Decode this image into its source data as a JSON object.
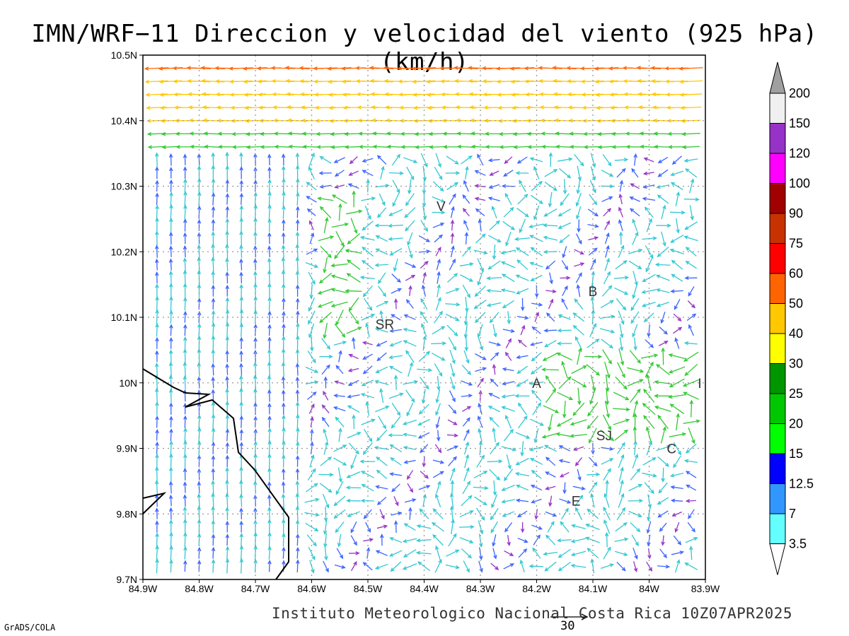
{
  "title": "IMN/WRF−11 Direccion y velocidad del viento (925 hPa)(km/h)",
  "footer": "Instituto Meteorologico Nacional Costa Rica 10Z07APR2025",
  "credit": "GrADS/COLA",
  "reference_vector": {
    "value": "30"
  },
  "map": {
    "lat_range": [
      9.7,
      10.5
    ],
    "lon_range": [
      -84.9,
      -83.9
    ],
    "y_ticks": [
      "10.5N",
      "10.4N",
      "10.3N",
      "10.2N",
      "10.1N",
      "10N",
      "9.9N",
      "9.8N",
      "9.7N"
    ],
    "x_ticks": [
      "84.9W",
      "84.8W",
      "84.7W",
      "84.6W",
      "84.5W",
      "84.4W",
      "84.3W",
      "84.2W",
      "84.1W",
      "84W",
      "83.9W"
    ],
    "grid": "dotted",
    "coastline_color": "#000000",
    "station_labels": [
      {
        "text": "V",
        "lon": -84.37,
        "lat": 10.27
      },
      {
        "text": "B",
        "lon": -84.1,
        "lat": 10.14
      },
      {
        "text": "SR",
        "lon": -84.47,
        "lat": 10.09
      },
      {
        "text": "A",
        "lon": -84.2,
        "lat": 10.0
      },
      {
        "text": "I",
        "lon": -83.91,
        "lat": 10.0
      },
      {
        "text": "SJ",
        "lon": -84.08,
        "lat": 9.92
      },
      {
        "text": "C",
        "lon": -83.96,
        "lat": 9.9
      },
      {
        "text": "E",
        "lon": -84.13,
        "lat": 9.82
      }
    ]
  },
  "colorbar": {
    "labels": [
      "200",
      "150",
      "120",
      "100",
      "90",
      "75",
      "60",
      "50",
      "40",
      "30",
      "25",
      "20",
      "15",
      "12.5",
      "7",
      "3.5"
    ],
    "colors": [
      "#a0a0a0",
      "#f0f0f0",
      "#9632c8",
      "#ff00ff",
      "#a00000",
      "#c83200",
      "#ff0000",
      "#ff6400",
      "#ffc800",
      "#ffff00",
      "#009600",
      "#00c800",
      "#00ff00",
      "#0000ff",
      "#3296ff",
      "#64ffff"
    ]
  },
  "wind_field_colors": {
    "calm": "#9632c8",
    "light": "#3c64ff",
    "moderate": "#32c8d2",
    "fresh": "#32c832",
    "strong": "#ffc800",
    "very_strong": "#ff6400"
  }
}
